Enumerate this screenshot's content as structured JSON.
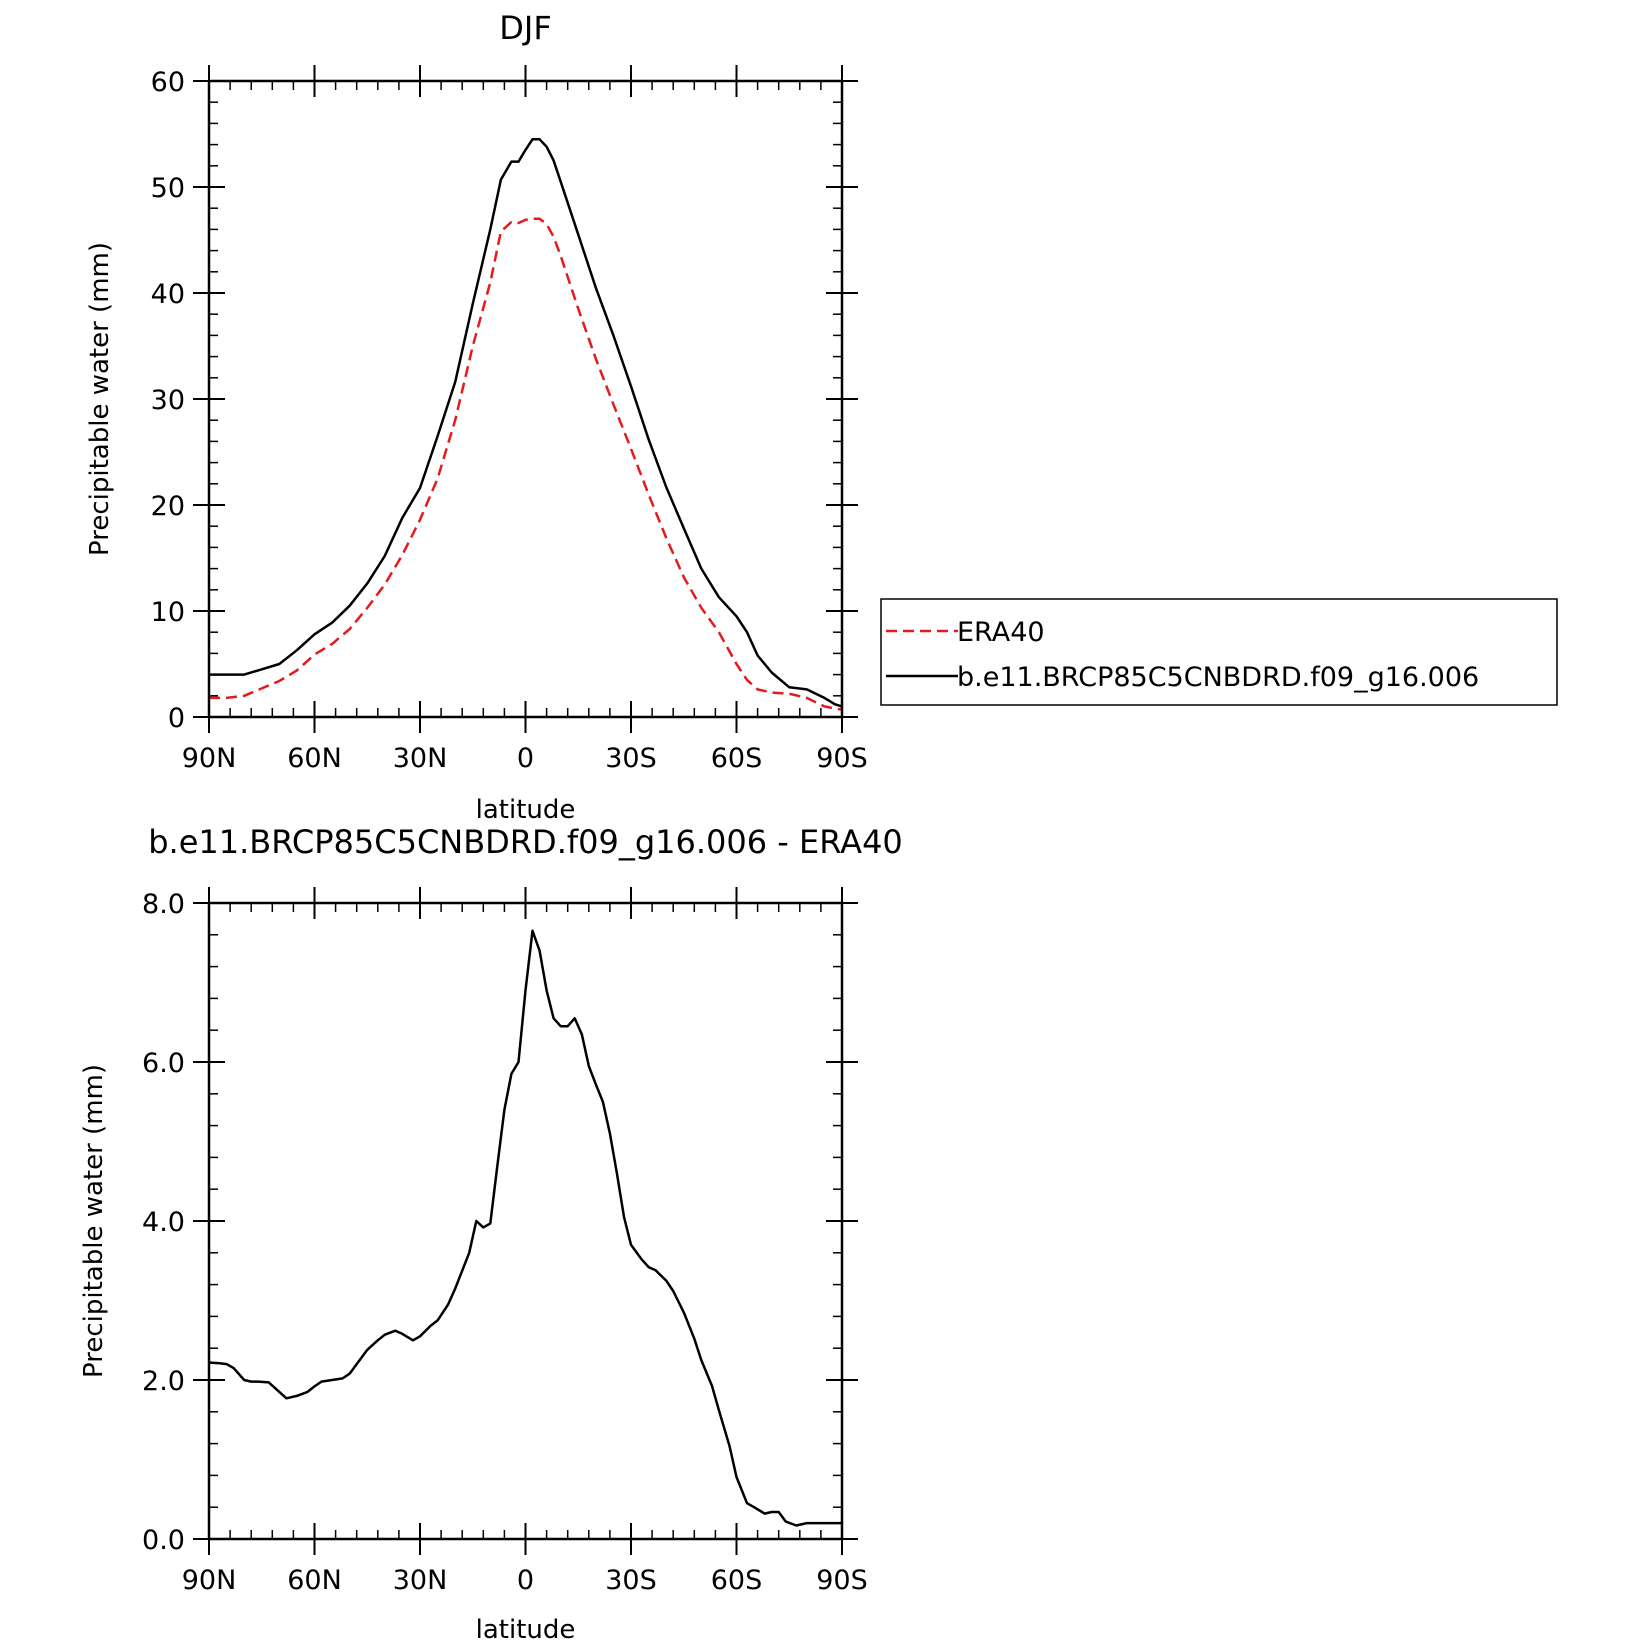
{
  "chart_data": [
    {
      "type": "line",
      "title": "DJF",
      "xlabel": "latitude",
      "ylabel": "Precipitable water (mm)",
      "xlim": [
        90,
        -90
      ],
      "ylim": [
        0,
        60
      ],
      "x_ticks": [
        90,
        60,
        30,
        0,
        -30,
        -60,
        -90
      ],
      "x_tick_labels": [
        "90N",
        "60N",
        "30N",
        "0",
        "30S",
        "60S",
        "90S"
      ],
      "y_ticks": [
        0,
        10,
        20,
        30,
        40,
        50,
        60
      ],
      "y_tick_labels": [
        "0",
        "10",
        "20",
        "30",
        "40",
        "50",
        "60"
      ],
      "grid": false,
      "legend": {
        "placement": "right",
        "entries": [
          "ERA40",
          "b.e11.BRCP85C5CNBDRD.f09_g16.006"
        ]
      },
      "x": [
        90,
        85,
        80,
        75,
        70,
        65,
        60,
        55,
        50,
        45,
        40,
        35,
        30,
        25,
        20,
        15,
        10,
        7,
        4,
        2,
        0,
        -2,
        -4,
        -6,
        -8,
        -10,
        -15,
        -20,
        -25,
        -30,
        -35,
        -40,
        -45,
        -50,
        -55,
        -60,
        -63,
        -66,
        -70,
        -75,
        -80,
        -85,
        -88,
        -90
      ],
      "series": [
        {
          "name": "ERA40",
          "color": "#e41a1c",
          "style": "dashed",
          "values": [
            1.8,
            1.8,
            2.0,
            2.7,
            3.4,
            4.4,
            5.9,
            6.9,
            8.3,
            10.3,
            12.5,
            15.3,
            18.6,
            22.5,
            28.0,
            35.0,
            41.0,
            45.8,
            46.7,
            46.6,
            46.9,
            47.0,
            47.0,
            46.5,
            45.3,
            43.5,
            38.5,
            33.8,
            29.5,
            25.3,
            21.0,
            16.9,
            13.2,
            10.3,
            8.0,
            5.0,
            3.5,
            2.6,
            2.3,
            2.2,
            1.8,
            1.0,
            0.8,
            0.7
          ]
        },
        {
          "name": "b.e11.BRCP85C5CNBDRD.f09_g16.006",
          "color": "#000000",
          "style": "solid",
          "values": [
            4.0,
            4.0,
            4.0,
            4.5,
            5.0,
            6.3,
            7.8,
            8.9,
            10.5,
            12.6,
            15.2,
            18.8,
            21.6,
            26.5,
            31.6,
            39.0,
            46.0,
            50.7,
            52.4,
            52.4,
            53.5,
            54.5,
            54.5,
            53.8,
            52.5,
            50.5,
            45.5,
            40.5,
            36.0,
            31.2,
            26.2,
            21.7,
            17.8,
            14.0,
            11.3,
            9.5,
            8.0,
            5.8,
            4.2,
            2.8,
            2.6,
            1.8,
            1.2,
            1.0
          ]
        }
      ]
    },
    {
      "type": "line",
      "title": "b.e11.BRCP85C5CNBDRD.f09_g16.006 - ERA40",
      "xlabel": "latitude",
      "ylabel": "Precipitable water (mm)",
      "xlim": [
        90,
        -90
      ],
      "ylim": [
        0,
        8
      ],
      "x_ticks": [
        90,
        60,
        30,
        0,
        -30,
        -60,
        -90
      ],
      "x_tick_labels": [
        "90N",
        "60N",
        "30N",
        "0",
        "30S",
        "60S",
        "90S"
      ],
      "y_ticks": [
        0,
        2,
        4,
        6,
        8
      ],
      "y_tick_labels": [
        "0.0",
        "2.0",
        "4.0",
        "6.0",
        "8.0"
      ],
      "grid": false,
      "x": [
        90,
        87,
        85,
        83,
        80,
        78,
        76,
        73,
        70,
        68,
        65,
        62,
        60,
        58,
        55,
        52,
        50,
        48,
        45,
        42,
        40,
        37,
        35,
        32,
        30,
        27,
        25,
        22,
        20,
        16,
        14,
        12,
        10,
        8,
        6,
        4,
        2,
        0,
        -2,
        -4,
        -6,
        -8,
        -10,
        -12,
        -14,
        -16,
        -18,
        -20,
        -22,
        -24,
        -26,
        -28,
        -30,
        -33,
        -35,
        -37,
        -40,
        -42,
        -45,
        -48,
        -50,
        -53,
        -55,
        -58,
        -60,
        -63,
        -65,
        -68,
        -70,
        -72,
        -74,
        -77,
        -80,
        -83,
        -85,
        -88,
        -90
      ],
      "series": [
        {
          "name": "",
          "color": "#000000",
          "style": "solid",
          "values": [
            2.22,
            2.21,
            2.2,
            2.15,
            2.0,
            1.98,
            1.98,
            1.97,
            1.85,
            1.77,
            1.8,
            1.85,
            1.92,
            1.98,
            2.0,
            2.02,
            2.08,
            2.2,
            2.38,
            2.5,
            2.57,
            2.62,
            2.58,
            2.5,
            2.55,
            2.68,
            2.75,
            2.95,
            3.15,
            3.6,
            4.0,
            3.92,
            3.97,
            4.7,
            5.4,
            5.85,
            6.0,
            6.9,
            7.65,
            7.4,
            6.9,
            6.55,
            6.45,
            6.45,
            6.55,
            6.35,
            5.95,
            5.72,
            5.5,
            5.1,
            4.6,
            4.05,
            3.7,
            3.52,
            3.42,
            3.38,
            3.25,
            3.12,
            2.85,
            2.52,
            2.25,
            1.93,
            1.62,
            1.17,
            0.78,
            0.45,
            0.4,
            0.32,
            0.34,
            0.34,
            0.22,
            0.17,
            0.2,
            0.2,
            0.2,
            0.2,
            0.2
          ]
        }
      ]
    }
  ]
}
